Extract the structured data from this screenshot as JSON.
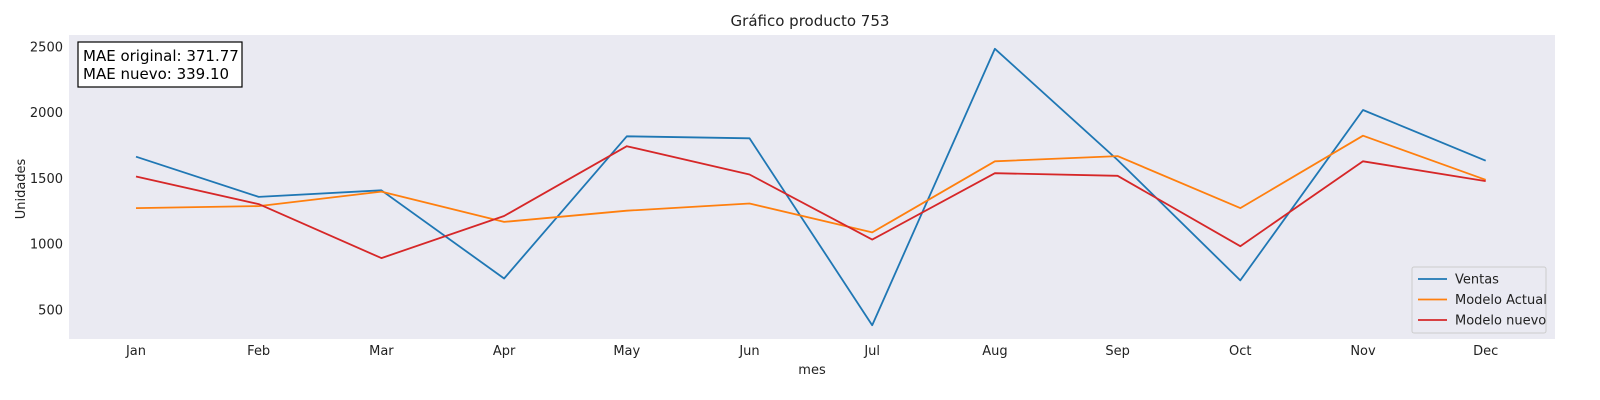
{
  "chart_data": {
    "type": "line",
    "title": "Gráfico producto 753",
    "xlabel": "mes",
    "ylabel": "Unidades",
    "categories": [
      "Jan",
      "Feb",
      "Mar",
      "Apr",
      "May",
      "Jun",
      "Jul",
      "Aug",
      "Sep",
      "Oct",
      "Nov",
      "Dec"
    ],
    "ylim": [
      280,
      2590
    ],
    "yticks": [
      500,
      1000,
      1500,
      2000,
      2500
    ],
    "grid": false,
    "legend_position": "bottom-right",
    "annotation": [
      "MAE original: 371.77",
      "MAE nuevo: 339.10"
    ],
    "series": [
      {
        "name": "Ventas",
        "color": "#1f77b4",
        "values": [
          1665,
          1360,
          1410,
          740,
          1820,
          1805,
          385,
          2485,
          1640,
          725,
          2020,
          1635
        ]
      },
      {
        "name": "Modelo Actual",
        "color": "#ff7f0e",
        "values": [
          1275,
          1290,
          1400,
          1170,
          1255,
          1310,
          1090,
          1630,
          1670,
          1275,
          1825,
          1490
        ]
      },
      {
        "name": "Modelo nuevo",
        "color": "#d62728",
        "values": [
          1515,
          1305,
          895,
          1215,
          1745,
          1530,
          1035,
          1540,
          1520,
          985,
          1630,
          1480
        ]
      }
    ]
  }
}
